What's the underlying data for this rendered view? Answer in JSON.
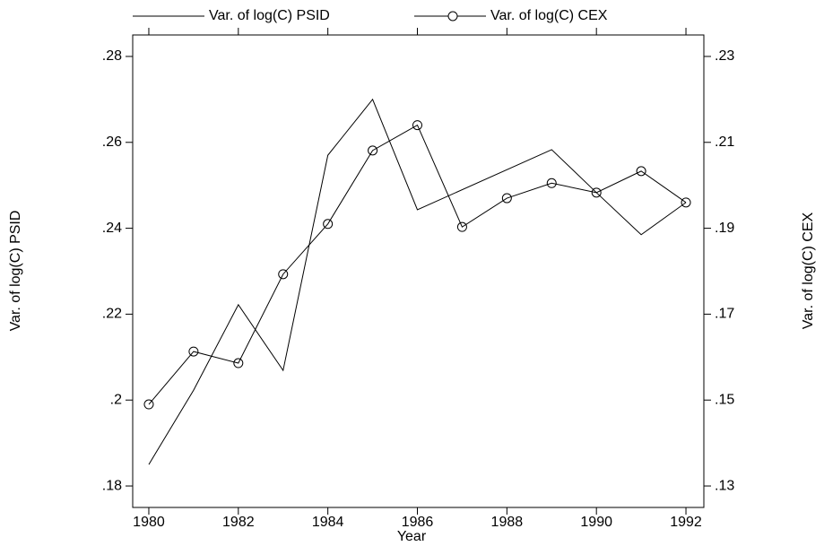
{
  "chart_data": {
    "type": "line",
    "x_label": "Year",
    "y_label": "Var. of log(C) PSID",
    "y2_label": "Var. of log(C) CEX",
    "series": [
      {
        "name": "Var. of log(C) PSID",
        "color": "#000000",
        "marker": "none",
        "x": [
          1980,
          1981,
          1982,
          1983,
          1984,
          1985,
          1986,
          1989,
          1990,
          1991,
          1992
        ],
        "values": [
          0.185,
          0.2023,
          0.2222,
          0.2069,
          0.257,
          0.27,
          0.2443,
          0.2583,
          0.2483,
          0.2385,
          0.246
        ]
      },
      {
        "name": "Var. of log(C) CEX",
        "color": "#000000",
        "marker": "circle",
        "axis": "y2",
        "x": [
          1980,
          1981,
          1982,
          1983,
          1984,
          1985,
          1986,
          1987,
          1988,
          1989,
          1990,
          1991,
          1992
        ],
        "values": [
          0.149,
          0.1613,
          0.1586,
          0.1793,
          0.191,
          0.2081,
          0.214,
          0.1903,
          0.197,
          0.2005,
          0.1983,
          0.2033,
          0.196
        ]
      }
    ],
    "xlim": [
      1979.64,
      1992.4
    ],
    "xticks": [
      1980,
      1982,
      1984,
      1986,
      1988,
      1990,
      1992
    ],
    "ylim": [
      0.175,
      0.285
    ],
    "yticks": [
      {
        "value": 0.18,
        "label": ".18"
      },
      {
        "value": 0.2,
        "label": ".2"
      },
      {
        "value": 0.22,
        "label": ".22"
      },
      {
        "value": 0.24,
        "label": ".24"
      },
      {
        "value": 0.26,
        "label": ".26"
      },
      {
        "value": 0.28,
        "label": ".28"
      }
    ],
    "y2lim": [
      0.125,
      0.235
    ],
    "y2ticks": [
      {
        "value": 0.13,
        "label": ".13"
      },
      {
        "value": 0.15,
        "label": ".15"
      },
      {
        "value": 0.17,
        "label": ".17"
      },
      {
        "value": 0.19,
        "label": ".19"
      },
      {
        "value": 0.21,
        "label": ".21"
      },
      {
        "value": 0.23,
        "label": ".23"
      }
    ],
    "grid": false,
    "legend": "top"
  }
}
